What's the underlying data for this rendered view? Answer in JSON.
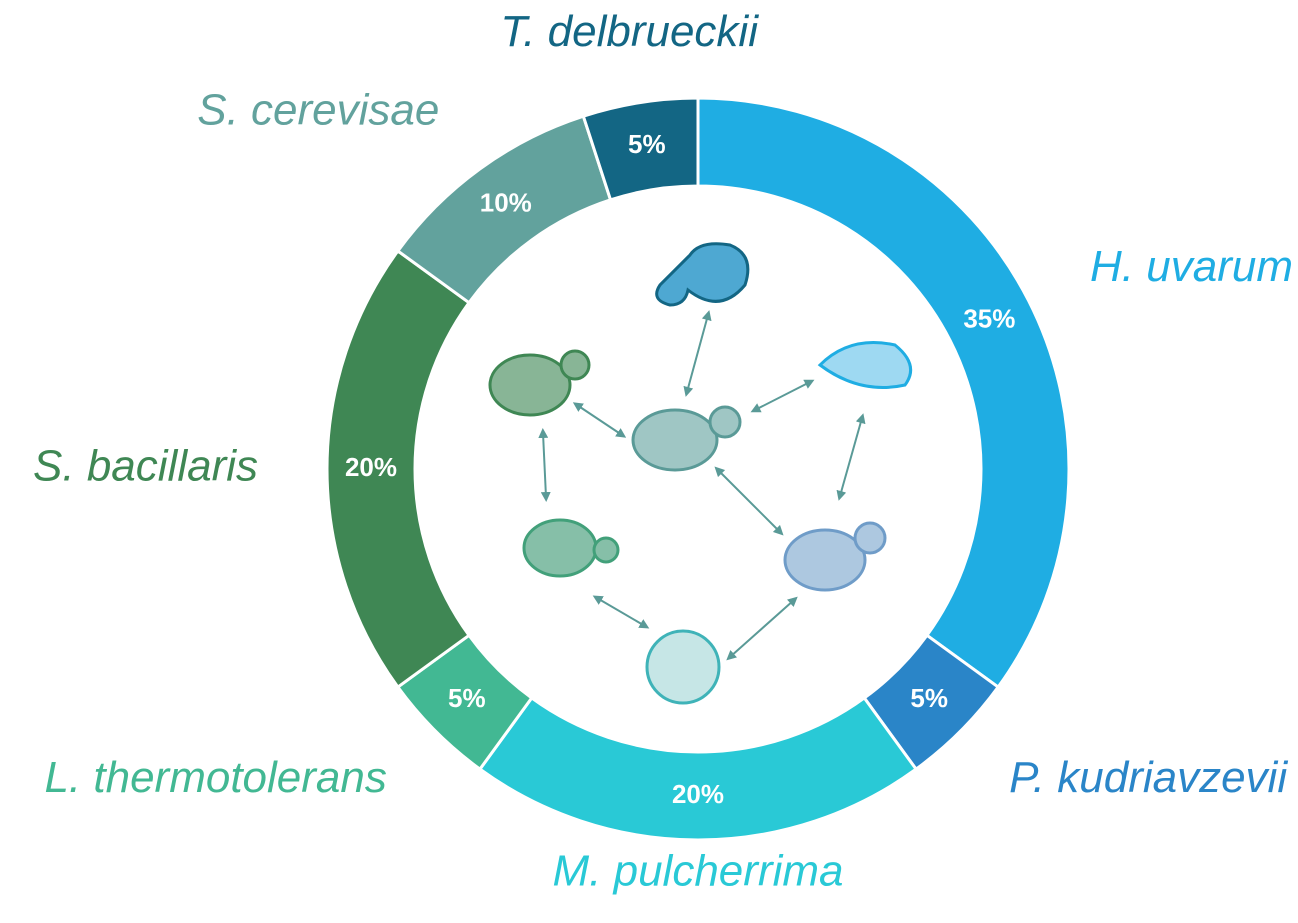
{
  "chart_data": {
    "type": "pie",
    "donut": true,
    "categories": [
      "H. uvarum",
      "P. kudriavzevii",
      "M. pulcherrima",
      "L. thermotolerans",
      "S. bacillaris",
      "S. cerevisae",
      "T. delbrueckii"
    ],
    "values": [
      35,
      5,
      20,
      5,
      20,
      10,
      5
    ],
    "value_labels": [
      "35%",
      "5%",
      "20%",
      "5%",
      "20%",
      "10%",
      "5%"
    ],
    "colors": [
      "#1fade3",
      "#2a85c8",
      "#29c9d6",
      "#42b893",
      "#3f8754",
      "#62a29d",
      "#136684"
    ]
  }
}
